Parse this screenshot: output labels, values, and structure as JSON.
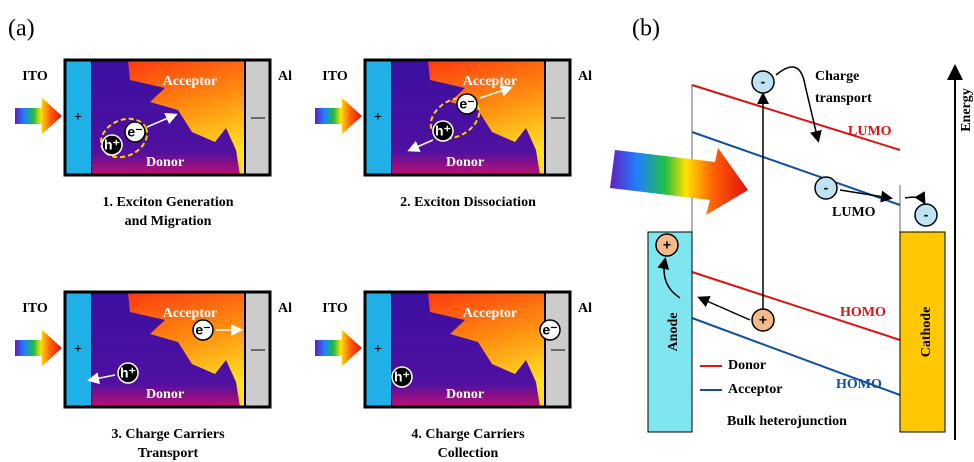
{
  "panel_a": {
    "label": "(a)",
    "steps": [
      {
        "ito": "ITO",
        "al": "Al",
        "anode_sign": "+",
        "cathode_sign": "—",
        "acceptor": "Acceptor",
        "donor": "Donor",
        "carriers": [
          "h⁺",
          "e⁻"
        ],
        "caption": [
          "1. Exciton Generation",
          "and Migration"
        ]
      },
      {
        "ito": "ITO",
        "al": "Al",
        "anode_sign": "+",
        "cathode_sign": "—",
        "acceptor": "Acceptor",
        "donor": "Donor",
        "carriers": [
          "e⁻",
          "h⁺"
        ],
        "caption": [
          "2. Exciton Dissociation"
        ]
      },
      {
        "ito": "ITO",
        "al": "Al",
        "anode_sign": "+",
        "cathode_sign": "—",
        "acceptor": "Acceptor",
        "donor": "Donor",
        "carriers": [
          "e⁻",
          "h⁺"
        ],
        "caption": [
          "3. Charge Carriers",
          "Transport"
        ]
      },
      {
        "ito": "ITO",
        "al": "Al",
        "anode_sign": "+",
        "cathode_sign": "—",
        "acceptor": "Acceptor",
        "donor": "Donor",
        "carriers": [
          "h⁺",
          "e⁻"
        ],
        "caption": [
          "4. Charge Carriers",
          "Collection"
        ]
      }
    ]
  },
  "panel_b": {
    "label": "(b)",
    "charge_transport": [
      "Charge",
      "transport"
    ],
    "lumo_donor": "LUMO",
    "lumo_acceptor": "LUMO",
    "homo_donor": "HOMO",
    "homo_acceptor": "HOMO",
    "anode": "Anode",
    "cathode": "Cathode",
    "legend": [
      "Donor",
      "Acceptor"
    ],
    "caption": "Bulk heterojunction",
    "energy": "Energy",
    "electrons": [
      "-",
      "-",
      "-"
    ],
    "holes": [
      "+",
      "+"
    ]
  }
}
